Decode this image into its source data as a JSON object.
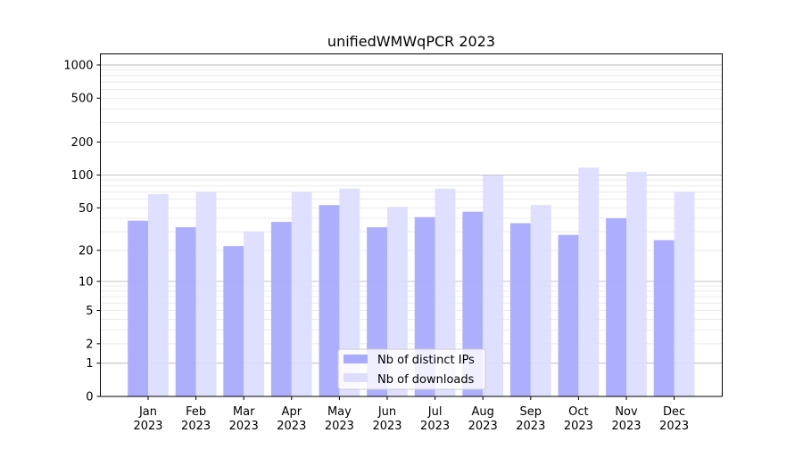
{
  "chart_data": {
    "type": "bar",
    "title": "unifiedWMWqPCR 2023",
    "xlabel": "",
    "ylabel": "",
    "yscale": "log(1+x)",
    "ylim": [
      0,
      1270
    ],
    "yticks": [
      0,
      1,
      2,
      5,
      10,
      20,
      50,
      100,
      200,
      500,
      1000
    ],
    "grid": true,
    "legend_position": "bottom-center",
    "categories": [
      "Jan\n2023",
      "Feb\n2023",
      "Mar\n2023",
      "Apr\n2023",
      "May\n2023",
      "Jun\n2023",
      "Jul\n2023",
      "Aug\n2023",
      "Sep\n2023",
      "Oct\n2023",
      "Nov\n2023",
      "Dec\n2023"
    ],
    "series": [
      {
        "name": "Nb of distinct IPs",
        "color": "#aaaaff",
        "values": [
          38,
          33,
          22,
          37,
          53,
          33,
          41,
          46,
          36,
          28,
          40,
          25
        ]
      },
      {
        "name": "Nb of downloads",
        "color": "#ddddff",
        "values": [
          67,
          70,
          30,
          70,
          75,
          51,
          75,
          99,
          53,
          117,
          107,
          70
        ]
      }
    ]
  }
}
